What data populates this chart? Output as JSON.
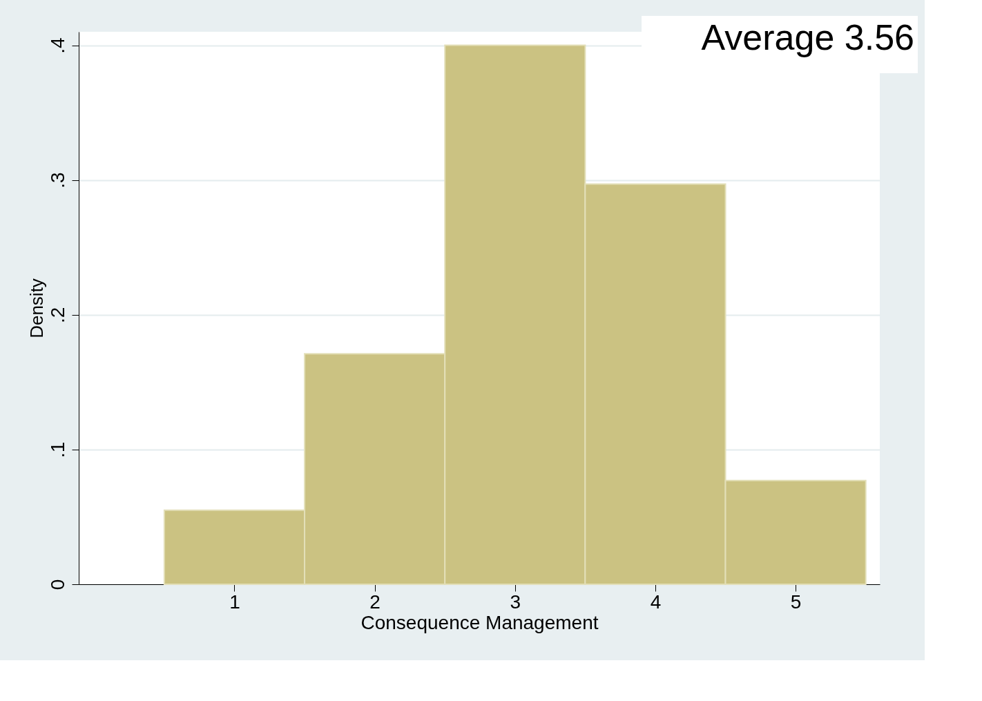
{
  "chart_data": {
    "type": "histogram",
    "xlabel": "Consequence Management",
    "ylabel": "Density",
    "bins": [
      0.5,
      1.5,
      2.5,
      3.5,
      4.5,
      5.5
    ],
    "values": [
      0.055,
      0.171,
      0.4,
      0.297,
      0.077
    ],
    "color": "#cbc282",
    "xlim": [
      -0.11,
      5.6
    ],
    "xticks": [
      1,
      2,
      3,
      4,
      5
    ],
    "ylim": [
      0,
      0.41
    ],
    "yticks": [
      {
        "value": 0,
        "label": "0"
      },
      {
        "value": 0.1,
        "label": ".1"
      },
      {
        "value": 0.2,
        "label": ".2"
      },
      {
        "value": 0.3,
        "label": ".3"
      },
      {
        "value": 0.4,
        "label": ".4"
      }
    ],
    "grid": "y",
    "annotations": [
      "Average 3.56"
    ]
  }
}
